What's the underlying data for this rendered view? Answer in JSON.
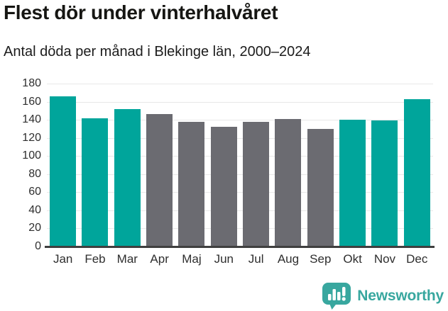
{
  "header": {
    "title": "Flest dör under vinterhalvåret",
    "subtitle": "Antal döda per månad i Blekinge län, 2000–2024"
  },
  "chart_data": {
    "type": "bar",
    "title": "Flest dör under vinterhalvåret",
    "subtitle": "Antal döda per månad i Blekinge län, 2000–2024",
    "categories": [
      "Jan",
      "Feb",
      "Mar",
      "Apr",
      "Maj",
      "Jun",
      "Jul",
      "Aug",
      "Sep",
      "Okt",
      "Nov",
      "Dec"
    ],
    "values": [
      166,
      142,
      152,
      146,
      138,
      132,
      138,
      141,
      130,
      140,
      139,
      163
    ],
    "bar_color_keys": [
      "winter",
      "winter",
      "winter",
      "summer",
      "summer",
      "summer",
      "summer",
      "summer",
      "summer",
      "winter",
      "winter",
      "winter"
    ],
    "colors": {
      "winter": "#00a59b",
      "summer": "#6b6b71"
    },
    "xlabel": "",
    "ylabel": "",
    "ylim": [
      0,
      180
    ],
    "yticks": [
      0,
      20,
      40,
      60,
      80,
      100,
      120,
      140,
      160,
      180
    ],
    "grid": true,
    "legend_position": "none",
    "gridline_color": "#e8e8e8",
    "axis_line_color": "#3f3f3f"
  },
  "footer": {
    "brand_name": "Newsworthy",
    "brand_color": "#38a79f"
  }
}
